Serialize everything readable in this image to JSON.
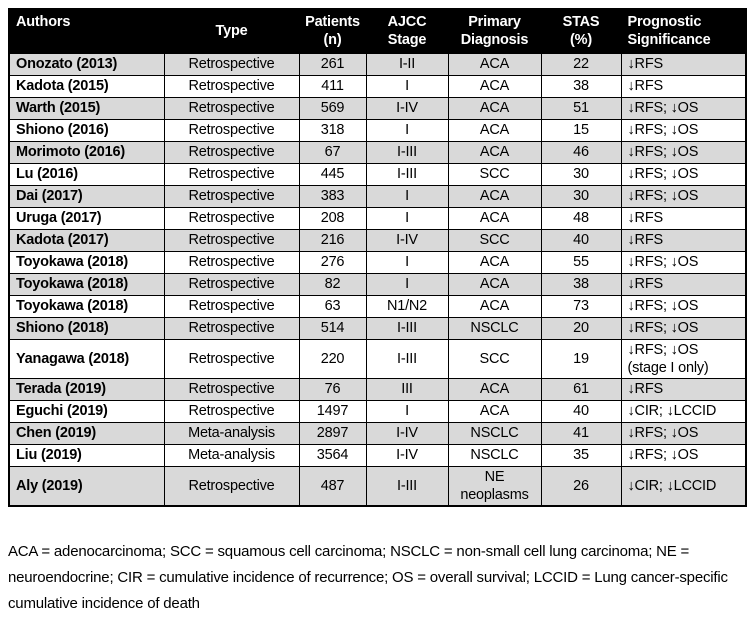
{
  "table": {
    "columns": [
      {
        "label": "Authors"
      },
      {
        "label": "Type"
      },
      {
        "label": "Patients\n(n)"
      },
      {
        "label": "AJCC\nStage"
      },
      {
        "label": "Primary\nDiagnosis"
      },
      {
        "label": "STAS\n(%)"
      },
      {
        "label": "Prognostic\nSignificance"
      }
    ],
    "rows": [
      [
        "Onozato (2013)",
        "Retrospective",
        "261",
        "I-II",
        "ACA",
        "22",
        "↓RFS"
      ],
      [
        "Kadota (2015)",
        "Retrospective",
        "411",
        "I",
        "ACA",
        "38",
        "↓RFS"
      ],
      [
        "Warth (2015)",
        "Retrospective",
        "569",
        "I-IV",
        "ACA",
        "51",
        "↓RFS; ↓OS"
      ],
      [
        "Shiono (2016)",
        "Retrospective",
        "318",
        "I",
        "ACA",
        "15",
        "↓RFS; ↓OS"
      ],
      [
        "Morimoto (2016)",
        "Retrospective",
        "67",
        "I-III",
        "ACA",
        "46",
        "↓RFS; ↓OS"
      ],
      [
        "Lu (2016)",
        "Retrospective",
        "445",
        "I-III",
        "SCC",
        "30",
        "↓RFS; ↓OS"
      ],
      [
        "Dai (2017)",
        "Retrospective",
        "383",
        "I",
        "ACA",
        "30",
        "↓RFS; ↓OS"
      ],
      [
        "Uruga (2017)",
        "Retrospective",
        "208",
        "I",
        "ACA",
        "48",
        "↓RFS"
      ],
      [
        "Kadota (2017)",
        "Retrospective",
        "216",
        "I-IV",
        "SCC",
        "40",
        "↓RFS"
      ],
      [
        "Toyokawa (2018)",
        "Retrospective",
        "276",
        "I",
        "ACA",
        "55",
        "↓RFS; ↓OS"
      ],
      [
        "Toyokawa (2018)",
        "Retrospective",
        "82",
        "I",
        "ACA",
        "38",
        "↓RFS"
      ],
      [
        "Toyokawa (2018)",
        "Retrospective",
        "63",
        "N1/N2",
        "ACA",
        "73",
        "↓RFS; ↓OS"
      ],
      [
        "Shiono (2018)",
        "Retrospective",
        "514",
        "I-III",
        "NSCLC",
        "20",
        "↓RFS; ↓OS"
      ],
      [
        "Yanagawa (2018)",
        "Retrospective",
        "220",
        "I-III",
        "SCC",
        "19",
        "↓RFS; ↓OS\n(stage I only)"
      ],
      [
        "Terada (2019)",
        "Retrospective",
        "76",
        "III",
        "ACA",
        "61",
        "↓RFS"
      ],
      [
        "Eguchi (2019)",
        "Retrospective",
        "1497",
        "I",
        "ACA",
        "40",
        "↓CIR; ↓LCCID"
      ],
      [
        "Chen (2019)",
        "Meta-analysis",
        "2897",
        "I-IV",
        "NSCLC",
        "41",
        "↓RFS; ↓OS"
      ],
      [
        "Liu (2019)",
        "Meta-analysis",
        "3564",
        "I-IV",
        "NSCLC",
        "35",
        "↓RFS; ↓OS"
      ],
      [
        "Aly (2019)",
        "Retrospective",
        "487",
        "I-III",
        "NE neoplasms",
        "26",
        "↓CIR; ↓LCCID"
      ]
    ]
  },
  "footnote": "ACA = adenocarcinoma; SCC = squamous cell carcinoma; NSCLC = non-small cell lung carcinoma; NE = neuroendocrine; CIR = cumulative incidence of recurrence; OS = overall survival; LCCID = Lung cancer-specific cumulative incidence of death"
}
